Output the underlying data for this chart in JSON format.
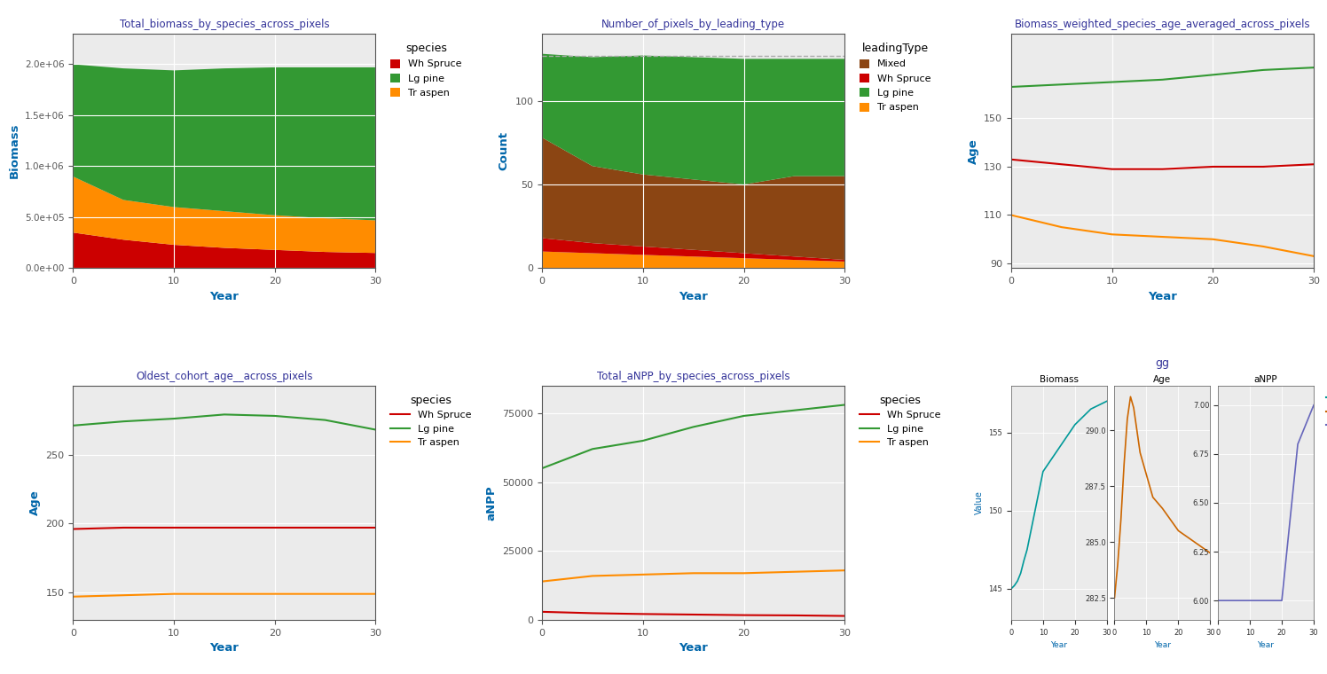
{
  "background_color": "#ffffff",
  "plot1": {
    "title": "Total_biomass_by_species_across_pixels",
    "xlabel": "Year",
    "ylabel": "Biomass",
    "years": [
      0,
      5,
      10,
      15,
      20,
      25,
      30
    ],
    "wh_spruce": [
      350000,
      280000,
      230000,
      200000,
      180000,
      160000,
      150000
    ],
    "tr_aspen": [
      550000,
      390000,
      370000,
      360000,
      340000,
      330000,
      320000
    ],
    "lg_pine": [
      1100000,
      1290000,
      1340000,
      1400000,
      1450000,
      1480000,
      1500000
    ],
    "colors": {
      "wh_spruce": "#cc0000",
      "lg_pine": "#339933",
      "tr_aspen": "#ff8c00"
    },
    "ylim": [
      0,
      2300000
    ],
    "yticks": [
      0,
      500000,
      1000000,
      1500000,
      2000000
    ],
    "yticklabels": [
      "0.0e+00",
      "5.0e+05",
      "1.0e+06",
      "1.5e+06",
      "2.0e+06"
    ],
    "xticks": [
      0,
      10,
      20,
      30
    ]
  },
  "plot2": {
    "title": "Number_of_pixels_by_leading_type",
    "xlabel": "Year",
    "ylabel": "Count",
    "years": [
      0,
      5,
      10,
      15,
      20,
      25,
      30
    ],
    "tr_aspen": [
      10,
      9,
      8,
      7,
      6,
      5,
      4
    ],
    "wh_spruce": [
      8,
      6,
      5,
      4,
      3,
      2,
      1
    ],
    "mixed": [
      60,
      46,
      43,
      42,
      41,
      48,
      50
    ],
    "lg_pine": [
      50,
      65,
      71,
      73,
      75,
      70,
      70
    ],
    "colors": {
      "mixed": "#8B4513",
      "wh_spruce": "#cc0000",
      "lg_pine": "#339933",
      "tr_aspen": "#ff8c00"
    },
    "ylim": [
      0,
      140
    ],
    "yticks": [
      0,
      50,
      100
    ],
    "dashed_line": 127,
    "xticks": [
      0,
      10,
      20,
      30
    ]
  },
  "plot3": {
    "title": "Biomass_weighted_species_age_averaged_across_pixels",
    "xlabel": "Year",
    "ylabel": "Age",
    "years": [
      0,
      5,
      10,
      15,
      20,
      25,
      30
    ],
    "wh_spruce": [
      133,
      131,
      129,
      129,
      130,
      130,
      131
    ],
    "lg_pine": [
      163,
      164,
      165,
      166,
      168,
      170,
      171
    ],
    "tr_aspen": [
      110,
      105,
      102,
      101,
      100,
      97,
      93
    ],
    "colors": {
      "wh_spruce": "#cc0000",
      "lg_pine": "#339933",
      "tr_aspen": "#ff8c00"
    },
    "ylim": [
      88,
      185
    ],
    "yticks": [
      90,
      110,
      130,
      150
    ],
    "xticks": [
      0,
      10,
      20,
      30
    ]
  },
  "plot4": {
    "title": "Oldest_cohort_age__across_pixels",
    "xlabel": "Year",
    "ylabel": "Age",
    "years": [
      0,
      5,
      10,
      15,
      20,
      25,
      30
    ],
    "wh_spruce": [
      196,
      197,
      197,
      197,
      197,
      197,
      197
    ],
    "lg_pine": [
      271,
      274,
      276,
      279,
      278,
      275,
      268
    ],
    "tr_aspen": [
      147,
      148,
      149,
      149,
      149,
      149,
      149
    ],
    "colors": {
      "wh_spruce": "#cc0000",
      "lg_pine": "#339933",
      "tr_aspen": "#ff8c00"
    },
    "ylim": [
      130,
      300
    ],
    "yticks": [
      150,
      200,
      250
    ],
    "xticks": [
      0,
      10,
      20,
      30
    ]
  },
  "plot5": {
    "title": "Total_aNPP_by_species_across_pixels",
    "xlabel": "Year",
    "ylabel": "aNPP",
    "years": [
      0,
      5,
      10,
      15,
      20,
      25,
      30
    ],
    "wh_spruce": [
      3000,
      2500,
      2200,
      2000,
      1800,
      1700,
      1500
    ],
    "lg_pine": [
      55000,
      62000,
      65000,
      70000,
      74000,
      76000,
      78000
    ],
    "tr_aspen": [
      14000,
      16000,
      16500,
      17000,
      17000,
      17500,
      18000
    ],
    "colors": {
      "wh_spruce": "#cc0000",
      "lg_pine": "#339933",
      "tr_aspen": "#ff8c00"
    },
    "ylim": [
      0,
      85000
    ],
    "yticks": [
      0,
      25000,
      50000,
      75000
    ],
    "xticks": [
      0,
      10,
      20,
      30
    ]
  },
  "plot6": {
    "title": "gg",
    "xlabel": "Year",
    "ylabel": "Value",
    "bm_years": [
      0,
      1,
      2,
      3,
      4,
      5,
      6,
      7,
      8,
      9,
      10,
      15,
      20,
      25,
      30
    ],
    "biomass": [
      145.0,
      145.2,
      145.5,
      146.0,
      146.8,
      147.5,
      148.5,
      149.5,
      150.5,
      151.5,
      152.5,
      154.0,
      155.5,
      156.5,
      157.0
    ],
    "age_years": [
      0,
      1,
      2,
      3,
      4,
      5,
      6,
      7,
      8,
      9,
      10,
      11,
      12,
      15,
      20,
      25,
      30
    ],
    "age": [
      282.5,
      284.0,
      286.0,
      288.5,
      290.5,
      291.5,
      291.0,
      290.0,
      289.0,
      288.5,
      288.0,
      287.5,
      287.0,
      286.5,
      285.5,
      285.0,
      284.5
    ],
    "anpp_years": [
      0,
      1,
      2,
      3,
      4,
      5,
      6,
      7,
      8,
      9,
      10,
      15,
      20,
      25,
      30
    ],
    "anpp": [
      6.0,
      6.0,
      6.0,
      6.0,
      6.0,
      6.0,
      6.0,
      6.0,
      6.0,
      6.0,
      6.0,
      6.0,
      6.0,
      6.8,
      7.0
    ],
    "colors": {
      "biomass": "#009999",
      "age": "#cc6600",
      "anpp": "#6666bb"
    },
    "ylim_biomass": [
      143,
      158
    ],
    "yticks_biomass": [
      145,
      150,
      155
    ],
    "ylim_age": [
      281.5,
      292
    ],
    "yticks_age": [
      282.5,
      285.0,
      287.5,
      290.0
    ],
    "ylim_anpp": [
      5.9,
      7.1
    ],
    "yticks_anpp": [
      6.0,
      6.25,
      6.5,
      6.75,
      7.0
    ]
  },
  "title_color": "#333399",
  "axis_label_color": "#0066aa",
  "tick_color": "#555555",
  "facecolor": "#ebebeb",
  "grid_color": "#ffffff"
}
